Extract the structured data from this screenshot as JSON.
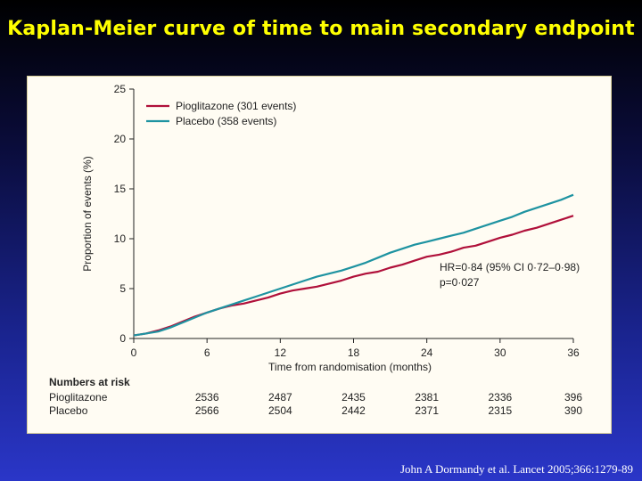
{
  "slide": {
    "title": "Kaplan-Meier curve of time to main secondary endpoint",
    "citation": "John A Dormandy et al. Lancet 2005;366:1279-89"
  },
  "colors": {
    "pioglitazone": "#b0103a",
    "placebo": "#1e93a1",
    "title": "#ffff00"
  },
  "chart_data": {
    "type": "line",
    "xlabel": "Time from randomisation (months)",
    "ylabel": "Proportion of events (%)",
    "xlim": [
      0,
      36
    ],
    "ylim": [
      0,
      25
    ],
    "xticks": [
      0,
      6,
      12,
      18,
      24,
      30,
      36
    ],
    "yticks": [
      0,
      5,
      10,
      15,
      20,
      25
    ],
    "grid": false,
    "legend_position": "top-left",
    "series": [
      {
        "name": "Pioglitazone (301 events)",
        "color": "#b0103a",
        "x": [
          0,
          1,
          2,
          3,
          4,
          5,
          6,
          7,
          8,
          9,
          10,
          11,
          12,
          13,
          14,
          15,
          16,
          17,
          18,
          19,
          20,
          21,
          22,
          23,
          24,
          25,
          26,
          27,
          28,
          29,
          30,
          31,
          32,
          33,
          34,
          35,
          36
        ],
        "y": [
          0.3,
          0.5,
          0.8,
          1.2,
          1.7,
          2.2,
          2.6,
          3.0,
          3.3,
          3.5,
          3.8,
          4.1,
          4.5,
          4.8,
          5.0,
          5.2,
          5.5,
          5.8,
          6.2,
          6.5,
          6.7,
          7.1,
          7.4,
          7.8,
          8.2,
          8.4,
          8.7,
          9.1,
          9.3,
          9.7,
          10.1,
          10.4,
          10.8,
          11.1,
          11.5,
          11.9,
          12.3
        ]
      },
      {
        "name": "Placebo (358 events)",
        "color": "#1e93a1",
        "x": [
          0,
          1,
          2,
          3,
          4,
          5,
          6,
          7,
          8,
          9,
          10,
          11,
          12,
          13,
          14,
          15,
          16,
          17,
          18,
          19,
          20,
          21,
          22,
          23,
          24,
          25,
          26,
          27,
          28,
          29,
          30,
          31,
          32,
          33,
          34,
          35,
          36
        ],
        "y": [
          0.3,
          0.5,
          0.7,
          1.1,
          1.6,
          2.1,
          2.6,
          3.0,
          3.4,
          3.8,
          4.2,
          4.6,
          5.0,
          5.4,
          5.8,
          6.2,
          6.5,
          6.8,
          7.2,
          7.6,
          8.1,
          8.6,
          9.0,
          9.4,
          9.7,
          10.0,
          10.3,
          10.6,
          11.0,
          11.4,
          11.8,
          12.2,
          12.7,
          13.1,
          13.5,
          13.9,
          14.4
        ]
      }
    ],
    "annotation": [
      "HR=0·84 (95% CI 0·72–0·98)",
      "p=0·027"
    ],
    "risk_table": {
      "heading": "Numbers at risk",
      "timepoints": [
        6,
        12,
        18,
        24,
        30,
        36
      ],
      "rows": [
        {
          "label": "Pioglitazone",
          "values": [
            "2536",
            "2487",
            "2435",
            "2381",
            "2336",
            "396"
          ]
        },
        {
          "label": "Placebo",
          "values": [
            "2566",
            "2504",
            "2442",
            "2371",
            "2315",
            "390"
          ]
        }
      ]
    }
  }
}
